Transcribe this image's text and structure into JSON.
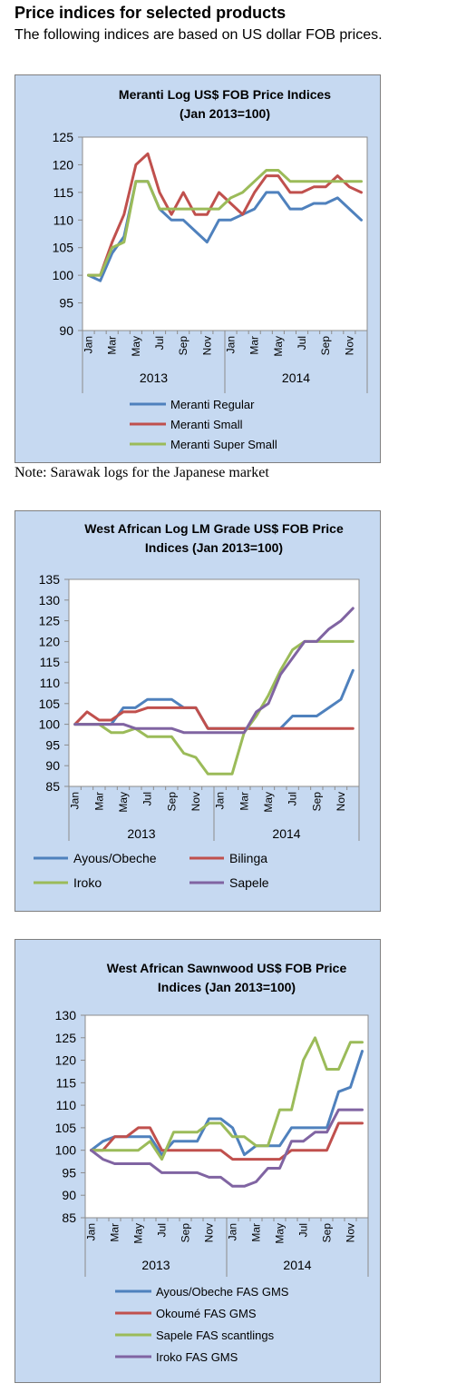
{
  "header": {
    "title": "Price indices for selected products",
    "subtitle": "The following indices are based on US dollar FOB prices."
  },
  "note": "Note: Sarawak logs for the Japanese market",
  "chart_data": [
    {
      "type": "line",
      "title": [
        "Meranti Log US$ FOB Price Indices",
        "(Jan 2013=100)"
      ],
      "months": [
        "Jan",
        "Feb",
        "Mar",
        "Apr",
        "May",
        "Jun",
        "Jul",
        "Aug",
        "Sep",
        "Oct",
        "Nov",
        "Dec",
        "Jan",
        "Feb",
        "Mar",
        "Apr",
        "May",
        "Jun",
        "Jul",
        "Aug",
        "Sep",
        "Oct",
        "Nov",
        "Dec"
      ],
      "xticklabels": [
        "Jan",
        "Mar",
        "May",
        "Jul",
        "Sep",
        "Nov",
        "Jan",
        "Mar",
        "May",
        "Jul",
        "Sep",
        "Nov"
      ],
      "years": [
        "2013",
        "2014"
      ],
      "ylim": [
        90,
        125
      ],
      "ystep": 5,
      "legend_layout": "vertical",
      "series": [
        {
          "name": "Meranti Regular",
          "color": "#4f81bd",
          "values": [
            100,
            99,
            104,
            107,
            117,
            117,
            112,
            110,
            110,
            108,
            106,
            110,
            110,
            111,
            112,
            115,
            115,
            112,
            112,
            113,
            113,
            114,
            112,
            110
          ]
        },
        {
          "name": "Meranti Small",
          "color": "#c0504d",
          "values": [
            100,
            100,
            106,
            111,
            120,
            122,
            115,
            111,
            115,
            111,
            111,
            115,
            113,
            111,
            115,
            118,
            118,
            115,
            115,
            116,
            116,
            118,
            116,
            115
          ]
        },
        {
          "name": "Meranti Super Small",
          "color": "#9bbb59",
          "values": [
            100,
            100,
            105,
            106,
            117,
            117,
            112,
            112,
            112,
            112,
            112,
            112,
            114,
            115,
            117,
            119,
            119,
            117,
            117,
            117,
            117,
            117,
            117,
            117
          ]
        }
      ]
    },
    {
      "type": "line",
      "title": [
        "West African Log LM Grade US$ FOB Price",
        "Indices (Jan 2013=100)"
      ],
      "months": [
        "Jan",
        "Feb",
        "Mar",
        "Apr",
        "May",
        "Jun",
        "Jul",
        "Aug",
        "Sep",
        "Oct",
        "Nov",
        "Dec",
        "Jan",
        "Feb",
        "Mar",
        "Apr",
        "May",
        "Jun",
        "Jul",
        "Aug",
        "Sep",
        "Oct",
        "Nov",
        "Dec"
      ],
      "xticklabels": [
        "Jan",
        "Mar",
        "May",
        "Jul",
        "Sep",
        "Nov",
        "Jan",
        "Mar",
        "May",
        "Jul",
        "Sep",
        "Nov"
      ],
      "years": [
        "2013",
        "2014"
      ],
      "ylim": [
        85,
        135
      ],
      "ystep": 5,
      "legend_layout": "grid",
      "series": [
        {
          "name": "Ayous/Obeche",
          "color": "#4f81bd",
          "values": [
            100,
            100,
            100,
            100,
            104,
            104,
            106,
            106,
            106,
            104,
            104,
            99,
            99,
            99,
            99,
            99,
            99,
            99,
            102,
            102,
            102,
            104,
            106,
            113
          ]
        },
        {
          "name": "Bilinga",
          "color": "#c0504d",
          "values": [
            100,
            103,
            101,
            101,
            103,
            103,
            104,
            104,
            104,
            104,
            104,
            99,
            99,
            99,
            99,
            99,
            99,
            99,
            99,
            99,
            99,
            99,
            99,
            99
          ]
        },
        {
          "name": "Iroko",
          "color": "#9bbb59",
          "values": [
            100,
            100,
            100,
            98,
            98,
            99,
            97,
            97,
            97,
            93,
            92,
            88,
            88,
            88,
            98,
            102,
            107,
            113,
            118,
            120,
            120,
            120,
            120,
            120
          ]
        },
        {
          "name": "Sapele",
          "color": "#8064a2",
          "values": [
            100,
            100,
            100,
            100,
            100,
            99,
            99,
            99,
            99,
            98,
            98,
            98,
            98,
            98,
            98,
            103,
            105,
            112,
            116,
            120,
            120,
            123,
            125,
            128
          ]
        }
      ]
    },
    {
      "type": "line",
      "title": [
        "West African Sawnwood US$ FOB Price",
        "Indices (Jan 2013=100)"
      ],
      "months": [
        "Jan",
        "Feb",
        "Mar",
        "Apr",
        "May",
        "Jun",
        "Jul",
        "Aug",
        "Sep",
        "Oct",
        "Nov",
        "Dec",
        "Jan",
        "Feb",
        "Mar",
        "Apr",
        "May",
        "Jun",
        "Jul",
        "Aug",
        "Sep",
        "Oct",
        "Nov",
        "Dec"
      ],
      "xticklabels": [
        "Jan",
        "Mar",
        "May",
        "Jul",
        "Sep",
        "Nov",
        "Jan",
        "Mar",
        "May",
        "Jul",
        "Sep",
        "Nov"
      ],
      "years": [
        "2013",
        "2014"
      ],
      "ylim": [
        85,
        130
      ],
      "ystep": 5,
      "legend_layout": "vertical",
      "series": [
        {
          "name": "Ayous/Obeche  FAS GMS",
          "color": "#4f81bd",
          "values": [
            100,
            102,
            103,
            103,
            103,
            103,
            99,
            102,
            102,
            102,
            107,
            107,
            105,
            99,
            101,
            101,
            101,
            105,
            105,
            105,
            105,
            113,
            114,
            122
          ]
        },
        {
          "name": "Okoumé  FAS GMS",
          "color": "#c0504d",
          "values": [
            100,
            100,
            103,
            103,
            105,
            105,
            100,
            100,
            100,
            100,
            100,
            100,
            98,
            98,
            98,
            98,
            98,
            100,
            100,
            100,
            100,
            106,
            106,
            106
          ]
        },
        {
          "name": "Sapele FAS scantlings",
          "color": "#9bbb59",
          "values": [
            100,
            100,
            100,
            100,
            100,
            102,
            98,
            104,
            104,
            104,
            106,
            106,
            103,
            103,
            101,
            101,
            109,
            109,
            120,
            125,
            118,
            118,
            124,
            124
          ]
        },
        {
          "name": "Iroko FAS GMS",
          "color": "#8064a2",
          "values": [
            100,
            98,
            97,
            97,
            97,
            97,
            95,
            95,
            95,
            95,
            94,
            94,
            92,
            92,
            93,
            96,
            96,
            102,
            102,
            104,
            104,
            109,
            109,
            109
          ]
        }
      ]
    }
  ]
}
